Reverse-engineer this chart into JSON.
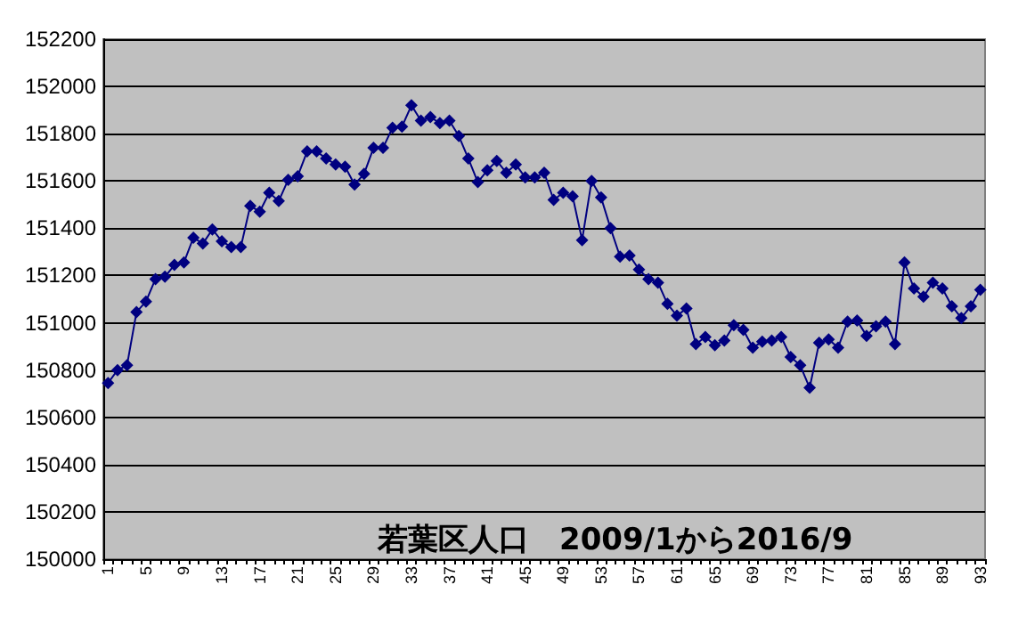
{
  "chart_data": {
    "type": "line",
    "title": "若葉区人口　2009/1から2016/9",
    "categories": [
      "1",
      null,
      null,
      null,
      "5",
      null,
      null,
      null,
      "9",
      null,
      null,
      null,
      "13",
      null,
      null,
      null,
      "17",
      null,
      null,
      null,
      "21",
      null,
      null,
      null,
      "25",
      null,
      null,
      null,
      "29",
      null,
      null,
      null,
      "33",
      null,
      null,
      null,
      "37",
      null,
      null,
      null,
      "41",
      null,
      null,
      null,
      "45",
      null,
      null,
      null,
      "49",
      null,
      null,
      null,
      "53",
      null,
      null,
      null,
      "57",
      null,
      null,
      null,
      "61",
      null,
      null,
      null,
      "65",
      null,
      null,
      null,
      "69",
      null,
      null,
      null,
      "73",
      null,
      null,
      null,
      "77",
      null,
      null,
      null,
      "81",
      null,
      null,
      null,
      "85",
      null,
      null,
      null,
      "89",
      null,
      null,
      null,
      "93"
    ],
    "series": [
      {
        "color": "#000080",
        "values": [
          150745,
          150800,
          150820,
          151045,
          151090,
          151185,
          151195,
          151245,
          151255,
          151360,
          151335,
          151395,
          151345,
          151320,
          151320,
          151495,
          151470,
          151550,
          151515,
          151605,
          151620,
          151725,
          151725,
          151695,
          151670,
          151660,
          151585,
          151630,
          151740,
          151740,
          151825,
          151830,
          151920,
          151855,
          151870,
          151845,
          151855,
          151790,
          151695,
          151595,
          151645,
          151685,
          151635,
          151670,
          151615,
          151615,
          151635,
          151520,
          151550,
          151535,
          151350,
          151600,
          151530,
          151400,
          151280,
          151285,
          151225,
          151185,
          151170,
          151080,
          151030,
          151060,
          150910,
          150940,
          150905,
          150925,
          150990,
          150970,
          150895,
          150920,
          150925,
          150940,
          150855,
          150820,
          150725,
          150915,
          150930,
          150895,
          151005,
          151010,
          150945,
          150985,
          151005,
          150910,
          151255,
          151145,
          151110,
          151170,
          151145,
          151070,
          151020,
          151070,
          151140
        ]
      }
    ],
    "ylim": [
      150000,
      152200
    ],
    "yticks": [
      150000,
      150200,
      150400,
      150600,
      150800,
      151000,
      151200,
      151400,
      151600,
      151800,
      152000,
      152200
    ],
    "grid": "y",
    "marker": "diamond",
    "line_style": "solid"
  }
}
